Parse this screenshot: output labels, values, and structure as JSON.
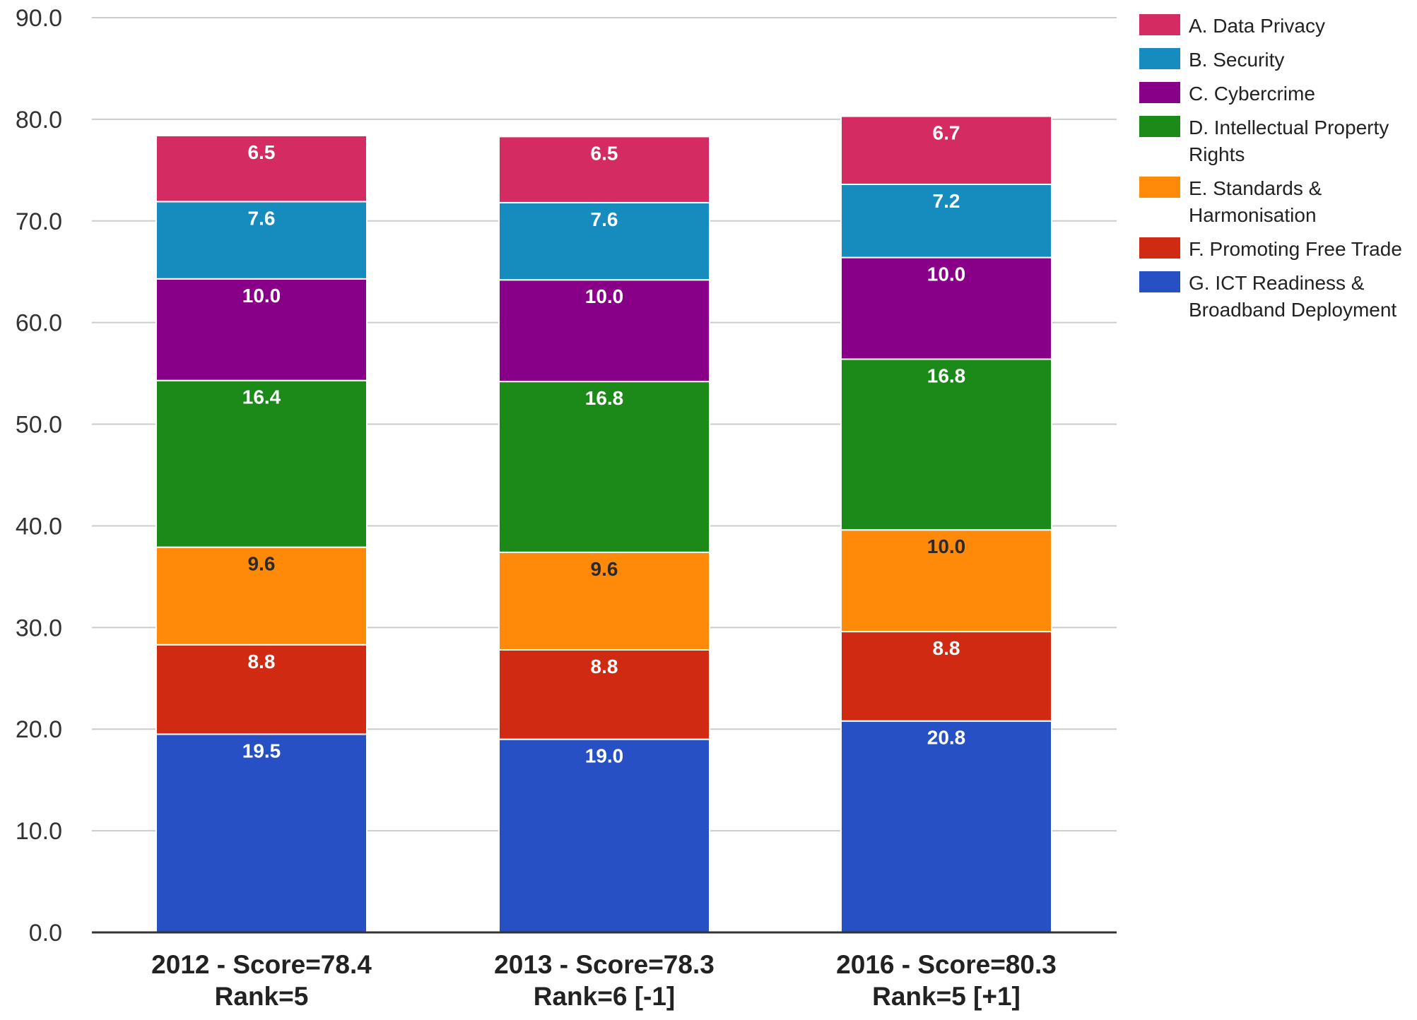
{
  "chart_data": {
    "type": "bar",
    "stacked": true,
    "categories": [
      "2012 - Score=78.4\nRank=5",
      "2013 - Score=78.3\nRank=6 [-1]",
      "2016 - Score=80.3\nRank=5 [+1]"
    ],
    "series": [
      {
        "name": "G. ICT Readiness & Broadband Deployment",
        "color": "#2650c3",
        "label_color": "#ffffff",
        "values": [
          19.5,
          19.0,
          20.8
        ],
        "labels": [
          "19.5",
          "19.0",
          "20.8"
        ]
      },
      {
        "name": "F. Promoting Free Trade",
        "color": "#d12a12",
        "label_color": "#ffffff",
        "values": [
          8.8,
          8.8,
          8.8
        ],
        "labels": [
          "8.8",
          "8.8",
          "8.8"
        ]
      },
      {
        "name": "E. Standards & Harmonisation",
        "color": "#ff8a0a",
        "label_color": "#2a2a2a",
        "values": [
          9.6,
          9.6,
          10.0
        ],
        "labels": [
          "9.6",
          "9.6",
          "10.0"
        ]
      },
      {
        "name": "D. Intellectual Property Rights",
        "color": "#1b8a18",
        "label_color": "#ffffff",
        "values": [
          16.4,
          16.8,
          16.8
        ],
        "labels": [
          "16.4",
          "16.8",
          "16.8"
        ]
      },
      {
        "name": "C. Cybercrime",
        "color": "#870087",
        "label_color": "#ffffff",
        "values": [
          10.0,
          10.0,
          10.0
        ],
        "labels": [
          "10.0",
          "10.0",
          "10.0"
        ]
      },
      {
        "name": "B. Security",
        "color": "#168bbe",
        "label_color": "#ffffff",
        "values": [
          7.6,
          7.6,
          7.2
        ],
        "labels": [
          "7.6",
          "7.6",
          "7.2"
        ]
      },
      {
        "name": "A. Data Privacy",
        "color": "#d42c62",
        "label_color": "#ffffff",
        "values": [
          6.5,
          6.5,
          6.7
        ],
        "labels": [
          "6.5",
          "6.5",
          "6.7"
        ]
      }
    ],
    "ylim": [
      0,
      90
    ],
    "yticks": [
      "0.0",
      "10.0",
      "20.0",
      "30.0",
      "40.0",
      "50.0",
      "60.0",
      "70.0",
      "80.0",
      "90.0"
    ],
    "grid": true,
    "legend_position": "right",
    "legend_order": [
      "A. Data Privacy",
      "B. Security",
      "C. Cybercrime",
      "D. Intellectual Property Rights",
      "E. Standards & Harmonisation",
      "F. Promoting Free Trade",
      "G. ICT Readiness & Broadband Deployment"
    ],
    "title": "",
    "xlabel": "",
    "ylabel": ""
  }
}
